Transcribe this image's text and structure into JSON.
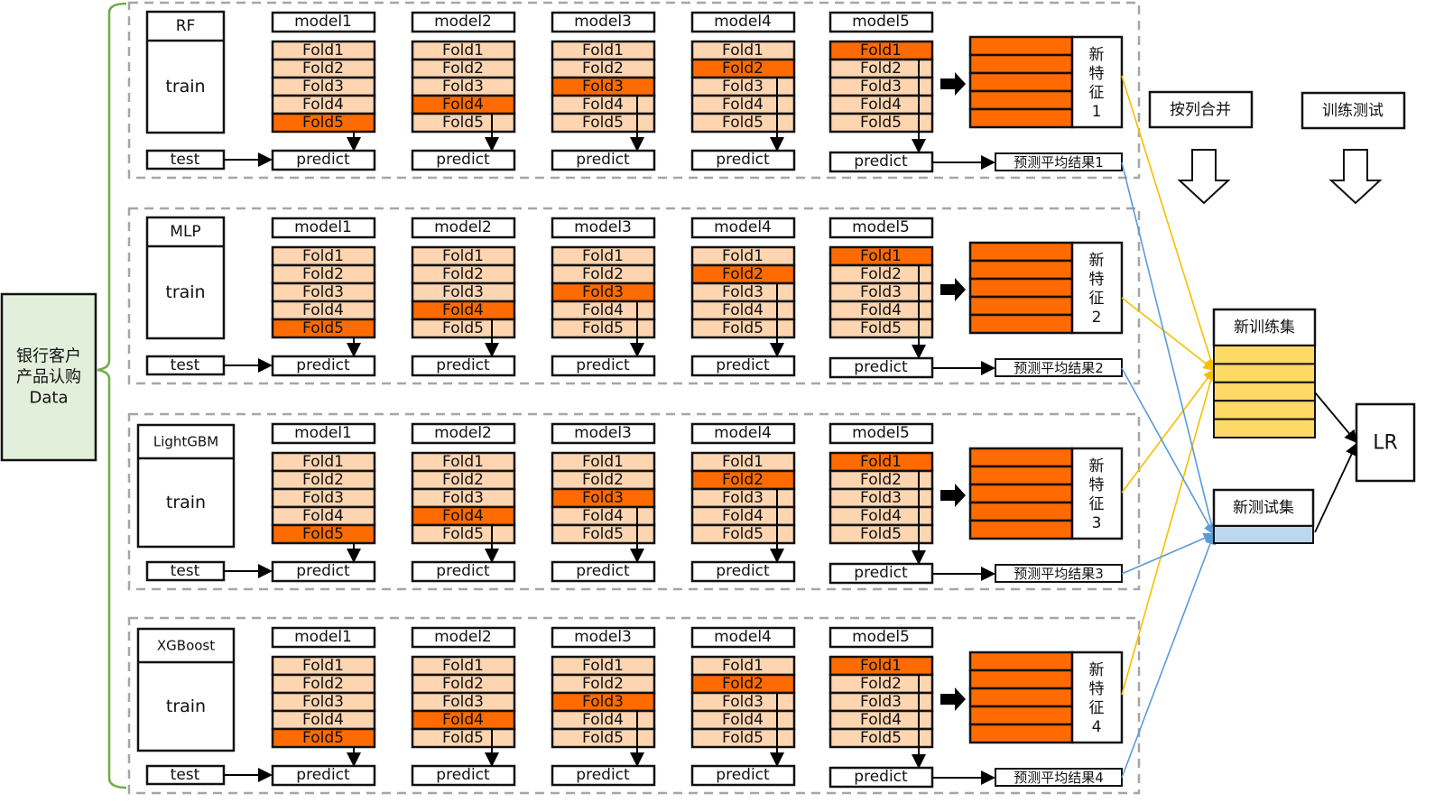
{
  "source": {
    "label_lines": [
      "银行客户",
      "产品认购",
      "Data"
    ]
  },
  "sections": [
    {
      "algorithm": "RF",
      "train": "train",
      "test": "test",
      "new_feature": [
        "新",
        "特",
        "征",
        "1"
      ],
      "avg_result": "预测平均结果1"
    },
    {
      "algorithm": "MLP",
      "train": "train",
      "test": "test",
      "new_feature": [
        "新",
        "特",
        "征",
        "2"
      ],
      "avg_result": "预测平均结果2"
    },
    {
      "algorithm": "LightGBM",
      "train": "train",
      "test": "test",
      "new_feature": [
        "新",
        "特",
        "征",
        "3"
      ],
      "avg_result": "预测平均结果3"
    },
    {
      "algorithm": "XGBoost",
      "train": "train",
      "test": "test",
      "new_feature": [
        "新",
        "特",
        "征",
        "4"
      ],
      "avg_result": "预测平均结果4"
    }
  ],
  "models": [
    {
      "label": "model1",
      "highlight_fold": 5
    },
    {
      "label": "model2",
      "highlight_fold": 4
    },
    {
      "label": "model3",
      "highlight_fold": 3
    },
    {
      "label": "model4",
      "highlight_fold": 2
    },
    {
      "label": "model5",
      "highlight_fold": 1
    }
  ],
  "folds": [
    "Fold1",
    "Fold2",
    "Fold3",
    "Fold4",
    "Fold5"
  ],
  "predict_label": "predict",
  "steps": {
    "merge": "按列合并",
    "train_test": "训练测试"
  },
  "new_train_set": "新训练集",
  "new_test_set": "新测试集",
  "final_model": "LR",
  "colors": {
    "fold_light": "#fdd5b1",
    "fold_dark": "#ff6b00",
    "train_rows": "#ffd966",
    "test_row": "#bdd7ee",
    "source_fill": "#e2efda",
    "source_border": "#70ad47",
    "yellow_line": "#f5c000",
    "blue_line": "#5b9bd5",
    "dash": "#a6a6a6"
  }
}
